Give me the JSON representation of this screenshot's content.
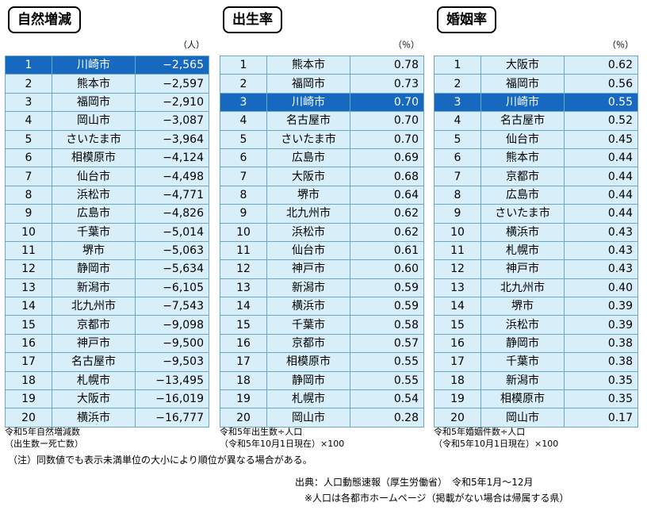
{
  "panels": [
    {
      "title": "自然増減",
      "unit": "（人）",
      "note1": "令和5年自然増減数",
      "note2": "（出生数ー死亡数）",
      "rows": [
        {
          "rank": "1",
          "city": "川崎市",
          "value": "−2,565",
          "highlight": true
        },
        {
          "rank": "2",
          "city": "熊本市",
          "value": "−2,597"
        },
        {
          "rank": "3",
          "city": "福岡市",
          "value": "−2,910"
        },
        {
          "rank": "4",
          "city": "岡山市",
          "value": "−3,087"
        },
        {
          "rank": "5",
          "city": "さいたま市",
          "value": "−3,964"
        },
        {
          "rank": "6",
          "city": "相模原市",
          "value": "−4,124"
        },
        {
          "rank": "7",
          "city": "仙台市",
          "value": "−4,498"
        },
        {
          "rank": "8",
          "city": "浜松市",
          "value": "−4,771"
        },
        {
          "rank": "9",
          "city": "広島市",
          "value": "−4,826"
        },
        {
          "rank": "10",
          "city": "千葉市",
          "value": "−5,014"
        },
        {
          "rank": "11",
          "city": "堺市",
          "value": "−5,063"
        },
        {
          "rank": "12",
          "city": "静岡市",
          "value": "−5,634"
        },
        {
          "rank": "13",
          "city": "新潟市",
          "value": "−6,105"
        },
        {
          "rank": "14",
          "city": "北九州市",
          "value": "−7,543"
        },
        {
          "rank": "15",
          "city": "京都市",
          "value": "−9,098"
        },
        {
          "rank": "16",
          "city": "神戸市",
          "value": "−9,500"
        },
        {
          "rank": "17",
          "city": "名古屋市",
          "value": "−9,503"
        },
        {
          "rank": "18",
          "city": "札幌市",
          "value": "−13,495"
        },
        {
          "rank": "19",
          "city": "大阪市",
          "value": "−16,019"
        },
        {
          "rank": "20",
          "city": "横浜市",
          "value": "−16,777"
        }
      ]
    },
    {
      "title": "出生率",
      "unit": "（％）",
      "note1": "令和5年出生数÷人口",
      "note2": "（令和5年10月1日現在）×100",
      "rows": [
        {
          "rank": "1",
          "city": "熊本市",
          "value": "0.78"
        },
        {
          "rank": "2",
          "city": "福岡市",
          "value": "0.73"
        },
        {
          "rank": "3",
          "city": "川崎市",
          "value": "0.70",
          "highlight": true
        },
        {
          "rank": "4",
          "city": "名古屋市",
          "value": "0.70"
        },
        {
          "rank": "5",
          "city": "さいたま市",
          "value": "0.70"
        },
        {
          "rank": "6",
          "city": "広島市",
          "value": "0.69"
        },
        {
          "rank": "7",
          "city": "大阪市",
          "value": "0.68"
        },
        {
          "rank": "8",
          "city": "堺市",
          "value": "0.64"
        },
        {
          "rank": "9",
          "city": "北九州市",
          "value": "0.62"
        },
        {
          "rank": "10",
          "city": "浜松市",
          "value": "0.62"
        },
        {
          "rank": "11",
          "city": "仙台市",
          "value": "0.61"
        },
        {
          "rank": "12",
          "city": "神戸市",
          "value": "0.60"
        },
        {
          "rank": "13",
          "city": "新潟市",
          "value": "0.59"
        },
        {
          "rank": "14",
          "city": "横浜市",
          "value": "0.59"
        },
        {
          "rank": "15",
          "city": "千葉市",
          "value": "0.58"
        },
        {
          "rank": "16",
          "city": "京都市",
          "value": "0.57"
        },
        {
          "rank": "17",
          "city": "相模原市",
          "value": "0.55"
        },
        {
          "rank": "18",
          "city": "静岡市",
          "value": "0.55"
        },
        {
          "rank": "19",
          "city": "札幌市",
          "value": "0.54"
        },
        {
          "rank": "20",
          "city": "岡山市",
          "value": "0.28"
        }
      ]
    },
    {
      "title": "婚姻率",
      "unit": "（％）",
      "note1": "令和5年婚姻件数÷人口",
      "note2": "（令和5年10月1日現在）×100",
      "rows": [
        {
          "rank": "1",
          "city": "大阪市",
          "value": "0.62"
        },
        {
          "rank": "2",
          "city": "福岡市",
          "value": "0.56"
        },
        {
          "rank": "3",
          "city": "川崎市",
          "value": "0.55",
          "highlight": true
        },
        {
          "rank": "4",
          "city": "名古屋市",
          "value": "0.52"
        },
        {
          "rank": "5",
          "city": "仙台市",
          "value": "0.45"
        },
        {
          "rank": "6",
          "city": "熊本市",
          "value": "0.44"
        },
        {
          "rank": "7",
          "city": "京都市",
          "value": "0.44"
        },
        {
          "rank": "8",
          "city": "広島市",
          "value": "0.44"
        },
        {
          "rank": "9",
          "city": "さいたま市",
          "value": "0.44"
        },
        {
          "rank": "10",
          "city": "横浜市",
          "value": "0.43"
        },
        {
          "rank": "11",
          "city": "札幌市",
          "value": "0.43"
        },
        {
          "rank": "12",
          "city": "神戸市",
          "value": "0.43"
        },
        {
          "rank": "13",
          "city": "北九州市",
          "value": "0.40"
        },
        {
          "rank": "14",
          "city": "堺市",
          "value": "0.39"
        },
        {
          "rank": "15",
          "city": "浜松市",
          "value": "0.39"
        },
        {
          "rank": "16",
          "city": "静岡市",
          "value": "0.38"
        },
        {
          "rank": "17",
          "city": "千葉市",
          "value": "0.38"
        },
        {
          "rank": "18",
          "city": "新潟市",
          "value": "0.35"
        },
        {
          "rank": "19",
          "city": "相模原市",
          "value": "0.35"
        },
        {
          "rank": "20",
          "city": "岡山市",
          "value": "0.17"
        }
      ]
    }
  ],
  "footer": {
    "caution": "（注）同数値でも表示未満単位の大小により順位が異なる場合がある。",
    "source": "出典：人口動態速報（厚生労働省）　令和5年1月～12月",
    "population": "※人口は各都市ホームページ（掲載がない場合は帰属する県）"
  },
  "colors": {
    "row_bg": "#d8eef8",
    "highlight_bg": "#1769c0",
    "border": "#6aa6c6"
  }
}
